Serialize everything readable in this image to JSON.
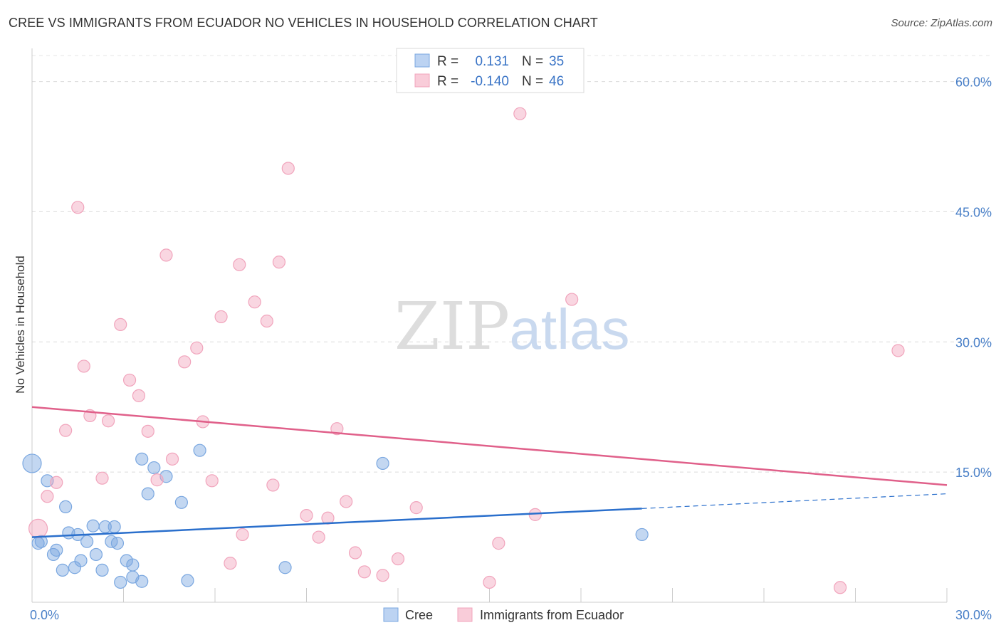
{
  "title": "CREE VS IMMIGRANTS FROM ECUADOR NO VEHICLES IN HOUSEHOLD CORRELATION CHART",
  "source": "Source: ZipAtlas.com",
  "chart_data": {
    "type": "scatter",
    "ylabel": "No Vehicles in Household",
    "xlim": [
      0,
      30
    ],
    "ylim": [
      0,
      63
    ],
    "x_ticks": [
      0,
      30
    ],
    "x_tick_labels": [
      "0.0%",
      "30.0%"
    ],
    "y_ticks": [
      15,
      30,
      45,
      60
    ],
    "y_tick_labels": [
      "15.0%",
      "30.0%",
      "45.0%",
      "60.0%"
    ],
    "grid": true,
    "watermark": "ZIPatlas",
    "legend_position": "top-center",
    "stats": [
      {
        "r_label": "R =",
        "r": "0.131",
        "n_label": "N =",
        "n": "35"
      },
      {
        "r_label": "R =",
        "r": "-0.140",
        "n_label": "N =",
        "n": "46"
      }
    ],
    "series": [
      {
        "name": "Cree",
        "color": "#7aa7e0",
        "line_color": "#2a6fcc",
        "trend": {
          "x0": 0,
          "y0": 7.5,
          "x1": 20,
          "y1": 10.8,
          "dash_to_x": 30,
          "dash_to_y": 12.5
        },
        "points": [
          [
            0.0,
            16.0,
            1.5
          ],
          [
            0.3,
            7.0,
            1
          ],
          [
            0.2,
            6.8,
            1
          ],
          [
            0.5,
            14.0,
            1
          ],
          [
            0.7,
            5.5,
            1
          ],
          [
            0.8,
            6.0,
            1
          ],
          [
            1.0,
            3.7,
            1
          ],
          [
            1.1,
            11.0,
            1
          ],
          [
            1.2,
            8.0,
            1
          ],
          [
            1.4,
            4.0,
            1
          ],
          [
            1.5,
            7.8,
            1
          ],
          [
            1.6,
            4.8,
            1
          ],
          [
            1.8,
            7.0,
            1
          ],
          [
            2.0,
            8.8,
            1
          ],
          [
            2.1,
            5.5,
            1
          ],
          [
            2.3,
            3.7,
            1
          ],
          [
            2.4,
            8.7,
            1
          ],
          [
            2.6,
            7.0,
            1
          ],
          [
            2.7,
            8.7,
            1
          ],
          [
            2.8,
            6.8,
            1
          ],
          [
            2.9,
            2.3,
            1
          ],
          [
            3.1,
            4.8,
            1
          ],
          [
            3.3,
            4.3,
            1
          ],
          [
            3.3,
            2.9,
            1
          ],
          [
            3.6,
            2.4,
            1
          ],
          [
            3.6,
            16.5,
            1
          ],
          [
            3.8,
            12.5,
            1
          ],
          [
            4.0,
            15.5,
            1
          ],
          [
            4.4,
            14.5,
            1
          ],
          [
            4.9,
            11.5,
            1
          ],
          [
            5.1,
            2.5,
            1
          ],
          [
            5.5,
            17.5,
            1
          ],
          [
            8.3,
            4.0,
            1
          ],
          [
            11.5,
            16.0,
            1
          ],
          [
            20.0,
            7.8,
            1
          ]
        ]
      },
      {
        "name": "Immigrants from Ecuador",
        "color": "#f1a4bc",
        "line_color": "#e0608a",
        "trend": {
          "x0": 0,
          "y0": 22.5,
          "x1": 30,
          "y1": 13.5
        },
        "points": [
          [
            0.2,
            8.5,
            1.5
          ],
          [
            0.5,
            12.2,
            1
          ],
          [
            0.8,
            13.8,
            1
          ],
          [
            1.1,
            19.8,
            1
          ],
          [
            1.5,
            45.5,
            1
          ],
          [
            1.7,
            27.2,
            1
          ],
          [
            1.9,
            21.5,
            1
          ],
          [
            2.3,
            14.3,
            1
          ],
          [
            2.5,
            20.9,
            1
          ],
          [
            2.9,
            32.0,
            1
          ],
          [
            3.2,
            25.6,
            1
          ],
          [
            3.5,
            23.8,
            1
          ],
          [
            3.8,
            19.7,
            1
          ],
          [
            4.1,
            14.1,
            1
          ],
          [
            4.4,
            40.0,
            1
          ],
          [
            4.6,
            16.5,
            1
          ],
          [
            5.0,
            27.7,
            1
          ],
          [
            5.4,
            29.3,
            1
          ],
          [
            5.6,
            20.8,
            1
          ],
          [
            5.9,
            14.0,
            1
          ],
          [
            6.2,
            32.9,
            1
          ],
          [
            6.5,
            4.5,
            1
          ],
          [
            6.8,
            38.9,
            1
          ],
          [
            6.9,
            7.8,
            1
          ],
          [
            7.3,
            34.6,
            1
          ],
          [
            7.7,
            32.4,
            1
          ],
          [
            7.9,
            13.5,
            1
          ],
          [
            8.1,
            39.2,
            1
          ],
          [
            8.4,
            50.0,
            1
          ],
          [
            9.0,
            10.0,
            1
          ],
          [
            9.4,
            7.5,
            1
          ],
          [
            9.7,
            9.7,
            1
          ],
          [
            10.0,
            20.0,
            1
          ],
          [
            10.3,
            11.6,
            1
          ],
          [
            10.6,
            5.7,
            1
          ],
          [
            10.9,
            3.5,
            1
          ],
          [
            11.5,
            3.1,
            1
          ],
          [
            12.0,
            5.0,
            1
          ],
          [
            12.6,
            10.9,
            1
          ],
          [
            15.0,
            2.3,
            1
          ],
          [
            15.3,
            6.8,
            1
          ],
          [
            16.0,
            56.3,
            1
          ],
          [
            16.5,
            10.1,
            1
          ],
          [
            17.7,
            34.9,
            1
          ],
          [
            26.5,
            1.7,
            1
          ],
          [
            28.4,
            29.0,
            1
          ]
        ]
      }
    ]
  }
}
